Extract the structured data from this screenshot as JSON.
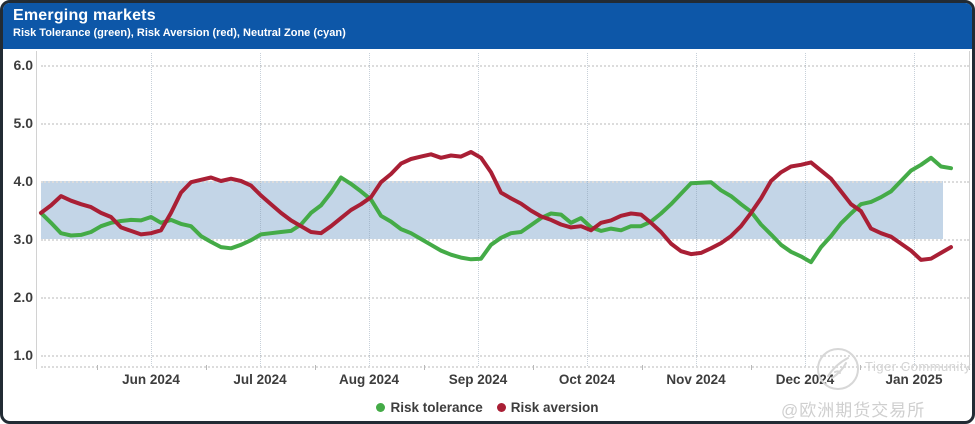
{
  "header": {
    "title": "Emerging markets",
    "subtitle": "Risk Tolerance (green), Risk Aversion (red), Neutral Zone (cyan)"
  },
  "chart_data": {
    "type": "line",
    "title": "Emerging markets",
    "subtitle": "Risk Tolerance (green), Risk Aversion (red), Neutral Zone (cyan)",
    "ylim": [
      1.0,
      6.0
    ],
    "y_ticks": [
      6.0,
      5.0,
      4.0,
      3.0,
      2.0,
      1.0
    ],
    "y_tick_labels": [
      "6.0",
      "5.0",
      "4.0",
      "3.0",
      "2.0",
      "1.0"
    ],
    "x_tick_labels": [
      "Jun 2024",
      "Jul 2024",
      "Aug 2024",
      "Sep 2024",
      "Oct 2024",
      "Nov 2024",
      "Dec 2024",
      "Jan 2025"
    ],
    "x_span_note": "data runs from early May 2024 to mid January 2025",
    "grid": "dotted",
    "legend_position": "bottom-center",
    "neutral_zone": {
      "label": "Neutral Zone",
      "from": 3.0,
      "to": 4.0,
      "color": "#c3d5e7"
    },
    "series": [
      {
        "name": "Risk tolerance",
        "color": "#44ab47",
        "values": [
          3.45,
          3.28,
          3.1,
          3.06,
          3.07,
          3.12,
          3.22,
          3.28,
          3.31,
          3.33,
          3.32,
          3.38,
          3.28,
          3.33,
          3.26,
          3.22,
          3.05,
          2.95,
          2.86,
          2.84,
          2.9,
          2.98,
          3.08,
          3.1,
          3.12,
          3.14,
          3.25,
          3.45,
          3.58,
          3.8,
          4.06,
          3.95,
          3.82,
          3.68,
          3.4,
          3.3,
          3.17,
          3.1,
          3.0,
          2.9,
          2.8,
          2.73,
          2.68,
          2.65,
          2.66,
          2.9,
          3.02,
          3.1,
          3.12,
          3.24,
          3.36,
          3.44,
          3.42,
          3.28,
          3.36,
          3.2,
          3.14,
          3.18,
          3.15,
          3.22,
          3.22,
          3.3,
          3.44,
          3.6,
          3.78,
          3.96,
          3.97,
          3.98,
          3.84,
          3.74,
          3.6,
          3.47,
          3.25,
          3.08,
          2.9,
          2.78,
          2.7,
          2.6,
          2.86,
          3.05,
          3.27,
          3.44,
          3.6,
          3.64,
          3.72,
          3.82,
          4.0,
          4.18,
          4.28,
          4.4,
          4.25,
          4.22
        ]
      },
      {
        "name": "Risk aversion",
        "color": "#a91f35",
        "values": [
          3.45,
          3.58,
          3.74,
          3.66,
          3.6,
          3.55,
          3.45,
          3.38,
          3.2,
          3.14,
          3.08,
          3.1,
          3.15,
          3.45,
          3.8,
          3.98,
          4.02,
          4.06,
          4.0,
          4.04,
          4.0,
          3.92,
          3.75,
          3.6,
          3.45,
          3.32,
          3.22,
          3.12,
          3.1,
          3.22,
          3.36,
          3.5,
          3.6,
          3.72,
          3.98,
          4.12,
          4.3,
          4.38,
          4.42,
          4.46,
          4.4,
          4.44,
          4.42,
          4.5,
          4.4,
          4.15,
          3.8,
          3.7,
          3.61,
          3.49,
          3.39,
          3.33,
          3.25,
          3.2,
          3.22,
          3.15,
          3.28,
          3.32,
          3.4,
          3.44,
          3.42,
          3.28,
          3.12,
          2.92,
          2.79,
          2.74,
          2.76,
          2.84,
          2.93,
          3.05,
          3.22,
          3.45,
          3.7,
          4.0,
          4.15,
          4.25,
          4.28,
          4.32,
          4.18,
          4.04,
          3.82,
          3.6,
          3.48,
          3.18,
          3.1,
          3.04,
          2.92,
          2.8,
          2.64,
          2.66,
          2.76,
          2.86
        ]
      }
    ]
  },
  "watermark": {
    "community": "Tiger Community",
    "handle": "@欧洲期货交易所Eurex"
  },
  "colors": {
    "header_bg": "#0d57a8",
    "risk_tolerance": "#44ab47",
    "risk_aversion": "#a91f35",
    "neutral_zone": "#c3d5e7",
    "axis_text": "#3d3d3d",
    "frame_border": "#222b34"
  }
}
